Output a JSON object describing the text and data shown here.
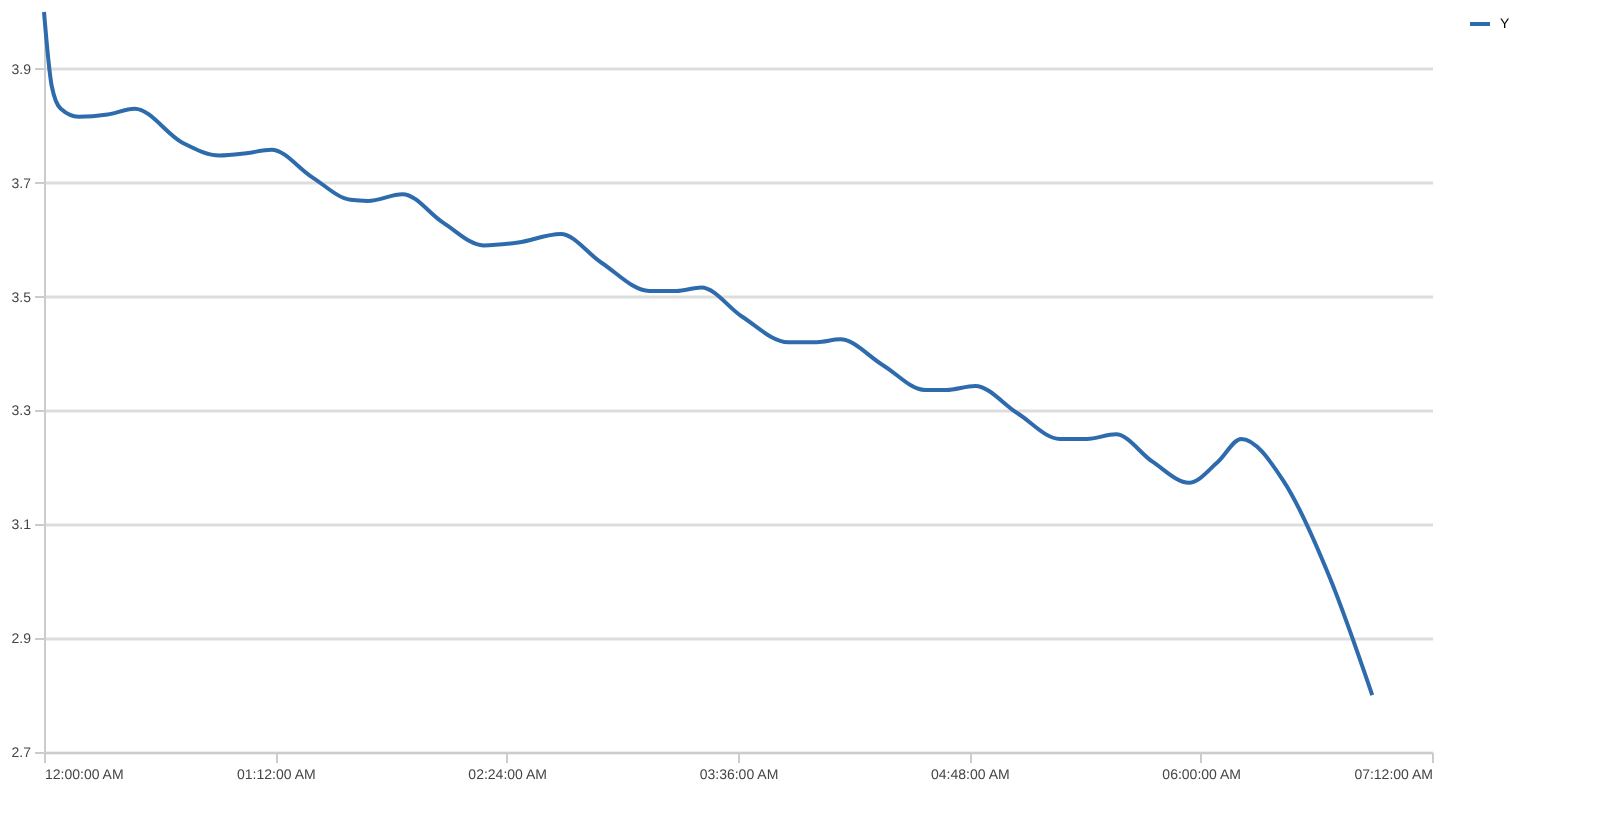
{
  "chart_data": {
    "type": "line",
    "legend": "right",
    "grid": "y",
    "marker": "none",
    "line_style": "solid",
    "x": [
      0,
      0.04,
      0.087,
      0.18,
      0.33,
      0.47,
      0.72,
      0.91,
      1.05,
      1.18,
      1.39,
      1.59,
      1.68,
      1.86,
      2.07,
      2.28,
      2.46,
      2.68,
      2.89,
      3.14,
      3.28,
      3.41,
      3.62,
      3.86,
      4.01,
      4.13,
      4.35,
      4.57,
      4.68,
      4.83,
      5.05,
      5.27,
      5.41,
      5.56,
      5.75,
      5.94,
      6.09,
      6.21,
      6.43,
      6.67,
      6.89
    ],
    "series": [
      {
        "name": "Y",
        "color": "#2e6bad",
        "values": [
          4.0,
          3.87,
          3.83,
          3.816,
          3.82,
          3.83,
          3.77,
          3.748,
          3.752,
          3.758,
          3.71,
          3.67,
          3.668,
          3.68,
          3.63,
          3.59,
          3.595,
          3.61,
          3.56,
          3.51,
          3.51,
          3.516,
          3.465,
          3.42,
          3.42,
          3.425,
          3.38,
          3.336,
          3.336,
          3.343,
          3.295,
          3.25,
          3.25,
          3.258,
          3.21,
          3.173,
          3.21,
          3.25,
          3.176,
          3.006,
          2.8
        ]
      }
    ],
    "xlim": [
      0,
      7.2
    ],
    "xticks": [
      {
        "value": 0,
        "label": "12:00:00 AM"
      },
      {
        "value": 1.2,
        "label": "01:12:00 AM"
      },
      {
        "value": 2.4,
        "label": "02:24:00 AM"
      },
      {
        "value": 3.6,
        "label": "03:36:00 AM"
      },
      {
        "value": 4.8,
        "label": "04:48:00 AM"
      },
      {
        "value": 6.0,
        "label": "06:00:00 AM"
      },
      {
        "value": 7.2,
        "label": "07:12:00 AM"
      }
    ],
    "ylim": [
      2.7,
      4.0
    ],
    "yticks": [
      2.7,
      2.9,
      3.1,
      3.3,
      3.5,
      3.7,
      3.9
    ]
  }
}
